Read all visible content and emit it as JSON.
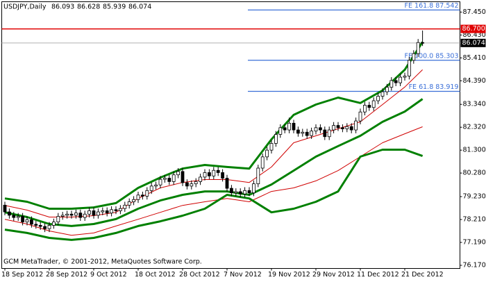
{
  "chart_data": {
    "type": "candlestick",
    "symbol": "USDJPY,Daily",
    "footer": "GCM MetaTrader, © 2001-2012, MetaQuotes Software Corp.",
    "categories": [
      "18 Sep 2012",
      null,
      null,
      null,
      null,
      null,
      null,
      null,
      null,
      null,
      "28 Sep 2012",
      null,
      null,
      null,
      null,
      null,
      null,
      null,
      null,
      null,
      "9 Oct 2012",
      null,
      null,
      null,
      null,
      null,
      null,
      null,
      null,
      null,
      "18 Oct 2012",
      null,
      null,
      null,
      null,
      null,
      null,
      null,
      null,
      null,
      "28 Oct 2012",
      null,
      null,
      null,
      null,
      null,
      null,
      null,
      null,
      null,
      "7 Nov 2012",
      null,
      null,
      null,
      null,
      null,
      null,
      null,
      null,
      null,
      "19 Nov 2012",
      null,
      null,
      null,
      null,
      null,
      null,
      null,
      null,
      null,
      "29 Nov 2012",
      null,
      null,
      null,
      null,
      null,
      null,
      null,
      null,
      null,
      "11 Dec 2012",
      null,
      null,
      null,
      null,
      null,
      null,
      null,
      null,
      null,
      "21 Dec 2012",
      null,
      null,
      null,
      null
    ],
    "open": [
      78.85,
      78.55,
      78.4,
      78.3,
      78.35,
      78.1,
      78.2,
      78.0,
      77.95,
      77.9,
      77.8,
      77.95,
      78.1,
      78.35,
      78.4,
      78.45,
      78.4,
      78.5,
      78.3,
      78.45,
      78.6,
      78.4,
      78.55,
      78.6,
      78.5,
      78.65,
      78.6,
      78.7,
      78.85,
      79.0,
      79.1,
      79.3,
      79.25,
      79.5,
      79.7,
      79.75,
      80.0,
      80.05,
      79.9,
      80.2,
      80.35,
      79.85,
      79.7,
      79.8,
      79.9,
      80.1,
      80.3,
      80.15,
      80.4,
      80.3,
      80.05,
      79.6,
      79.4,
      79.45,
      79.35,
      79.5,
      79.4,
      79.8,
      80.5,
      81.0,
      81.3,
      81.6,
      82.0,
      82.3,
      82.2,
      82.5,
      82.2,
      82.05,
      82.1,
      81.95,
      82.15,
      82.3,
      82.2,
      81.9,
      82.2,
      82.4,
      82.3,
      82.25,
      82.35,
      82.2,
      82.6,
      83.0,
      83.3,
      83.2,
      83.5,
      83.7,
      83.9,
      84.1,
      84.4,
      84.3,
      84.55,
      84.6,
      85.3,
      85.6,
      86.093
    ],
    "high": [
      79.0,
      78.7,
      78.55,
      78.5,
      78.5,
      78.35,
      78.35,
      78.15,
      78.1,
      78.05,
      78.1,
      78.25,
      78.5,
      78.55,
      78.6,
      78.6,
      78.65,
      78.65,
      78.6,
      78.75,
      78.75,
      78.7,
      78.75,
      78.75,
      78.8,
      78.8,
      78.85,
      79.0,
      79.15,
      79.25,
      79.45,
      79.45,
      79.65,
      79.85,
      79.9,
      80.15,
      80.2,
      80.2,
      80.35,
      80.5,
      80.5,
      80.0,
      79.95,
      80.05,
      80.25,
      80.45,
      80.45,
      80.55,
      80.55,
      80.45,
      80.2,
      79.75,
      79.6,
      79.6,
      79.65,
      79.65,
      79.95,
      80.65,
      81.15,
      81.45,
      81.75,
      82.15,
      82.45,
      82.45,
      82.75,
      82.65,
      82.35,
      82.25,
      82.25,
      82.3,
      82.45,
      82.45,
      82.35,
      82.35,
      82.55,
      82.55,
      82.45,
      82.5,
      82.5,
      82.75,
      83.15,
      83.45,
      83.45,
      83.65,
      83.85,
      84.05,
      84.25,
      84.55,
      84.55,
      84.7,
      84.75,
      85.45,
      85.75,
      86.25,
      86.628
    ],
    "low": [
      78.4,
      78.25,
      78.15,
      78.15,
      77.95,
      77.95,
      77.85,
      77.8,
      77.75,
      77.65,
      77.65,
      77.8,
      77.95,
      78.2,
      78.25,
      78.25,
      78.25,
      78.15,
      78.15,
      78.3,
      78.25,
      78.25,
      78.4,
      78.35,
      78.35,
      78.45,
      78.45,
      78.55,
      78.7,
      78.85,
      78.95,
      79.1,
      79.1,
      79.35,
      79.55,
      79.6,
      79.85,
      79.75,
      79.75,
      80.05,
      79.7,
      79.55,
      79.55,
      79.65,
      79.75,
      79.95,
      80.0,
      80.0,
      80.15,
      79.9,
      79.45,
      79.25,
      79.25,
      79.2,
      79.2,
      79.25,
      79.25,
      79.65,
      80.35,
      80.85,
      81.15,
      81.45,
      81.85,
      82.05,
      82.05,
      82.05,
      81.9,
      81.9,
      81.8,
      81.8,
      82.0,
      82.05,
      81.75,
      81.75,
      82.05,
      82.15,
      82.1,
      82.1,
      82.05,
      82.05,
      82.45,
      82.85,
      83.05,
      83.05,
      83.35,
      83.55,
      83.75,
      83.95,
      84.15,
      84.15,
      84.4,
      84.45,
      85.15,
      85.45,
      85.939
    ],
    "close": [
      78.55,
      78.4,
      78.3,
      78.35,
      78.1,
      78.2,
      78.0,
      77.95,
      77.9,
      77.8,
      77.95,
      78.1,
      78.35,
      78.4,
      78.45,
      78.4,
      78.5,
      78.3,
      78.45,
      78.6,
      78.4,
      78.55,
      78.6,
      78.5,
      78.65,
      78.6,
      78.7,
      78.85,
      79.0,
      79.1,
      79.3,
      79.25,
      79.5,
      79.7,
      79.75,
      80.0,
      80.05,
      79.9,
      80.2,
      80.35,
      79.85,
      79.7,
      79.8,
      79.9,
      80.1,
      80.3,
      80.15,
      80.4,
      80.3,
      80.05,
      79.6,
      79.4,
      79.45,
      79.35,
      79.5,
      79.4,
      79.8,
      80.5,
      81.0,
      81.3,
      81.6,
      82.0,
      82.3,
      82.2,
      82.5,
      82.2,
      82.05,
      82.1,
      81.95,
      82.15,
      82.3,
      82.2,
      81.9,
      82.2,
      82.4,
      82.3,
      82.25,
      82.35,
      82.2,
      82.6,
      83.0,
      83.3,
      83.2,
      83.5,
      83.7,
      83.9,
      84.1,
      84.4,
      84.3,
      84.55,
      84.6,
      85.3,
      85.6,
      86.093,
      86.074
    ],
    "bull_color": "#ffffff",
    "bear_color": "#000000",
    "ylim": [
      76.03,
      87.91
    ],
    "yticks": [
      {
        "value": 87.45,
        "label": "87.450"
      },
      {
        "value": 86.43,
        "label": "86.430"
      },
      {
        "value": 85.41,
        "label": "85.410"
      },
      {
        "value": 84.39,
        "label": "84.390"
      },
      {
        "value": 83.34,
        "label": "83.340"
      },
      {
        "value": 82.32,
        "label": "82.320"
      },
      {
        "value": 81.3,
        "label": "81.300"
      },
      {
        "value": 80.28,
        "label": "80.280"
      },
      {
        "value": 79.23,
        "label": "79.230"
      },
      {
        "value": 78.21,
        "label": "78.210"
      },
      {
        "value": 77.19,
        "label": "77.190"
      },
      {
        "value": 76.17,
        "label": "76.170"
      }
    ],
    "lines": [
      {
        "color": "#008000",
        "width": 3,
        "x": [
          0,
          5,
          10,
          15,
          20,
          25,
          30,
          35,
          40,
          45,
          50,
          55,
          60,
          65,
          70,
          75,
          80,
          85,
          90,
          94
        ],
        "values": [
          79.15,
          79.0,
          78.69,
          78.69,
          78.75,
          78.94,
          79.62,
          80.08,
          80.48,
          80.64,
          80.55,
          80.48,
          81.78,
          82.87,
          83.33,
          83.64,
          83.4,
          83.96,
          84.88,
          86.12
        ]
      },
      {
        "color": "#d00000",
        "width": 1,
        "x": [
          0,
          5,
          10,
          15,
          20,
          25,
          30,
          35,
          40,
          45,
          50,
          55,
          60,
          65,
          70,
          75,
          80,
          85,
          90,
          94
        ],
        "values": [
          78.84,
          78.63,
          78.32,
          78.32,
          78.38,
          78.53,
          79.15,
          79.62,
          79.86,
          79.99,
          79.99,
          79.86,
          80.55,
          81.63,
          81.94,
          82.25,
          82.56,
          83.33,
          84.11,
          84.88
        ]
      },
      {
        "color": "#008000",
        "width": 3,
        "x": [
          0,
          5,
          10,
          15,
          20,
          25,
          30,
          35,
          40,
          45,
          50,
          55,
          60,
          65,
          70,
          75,
          80,
          85,
          90,
          94
        ],
        "values": [
          78.53,
          78.32,
          78.01,
          77.92,
          78.01,
          78.23,
          78.69,
          79.06,
          79.31,
          79.46,
          79.46,
          79.31,
          79.77,
          80.39,
          81.01,
          81.48,
          81.94,
          82.56,
          83.02,
          83.58
        ]
      },
      {
        "color": "#d00000",
        "width": 1,
        "x": [
          0,
          5,
          10,
          15,
          20,
          25,
          30,
          35,
          40,
          45,
          50,
          55,
          60,
          65,
          70,
          75,
          80,
          85,
          90,
          94
        ],
        "values": [
          78.22,
          78.01,
          77.7,
          77.51,
          77.61,
          77.92,
          78.22,
          78.53,
          78.84,
          79.0,
          79.15,
          79.0,
          79.46,
          79.62,
          79.93,
          80.39,
          81.01,
          81.63,
          82.03,
          82.34
        ]
      },
      {
        "color": "#008000",
        "width": 3,
        "x": [
          0,
          5,
          10,
          15,
          20,
          25,
          30,
          35,
          40,
          45,
          50,
          55,
          60,
          65,
          70,
          75,
          80,
          85,
          90,
          94
        ],
        "values": [
          77.76,
          77.61,
          77.39,
          77.3,
          77.39,
          77.61,
          77.92,
          78.13,
          78.38,
          78.69,
          79.31,
          79.15,
          78.53,
          78.69,
          79.0,
          79.46,
          81.01,
          81.32,
          81.32,
          81.04
        ]
      }
    ],
    "fib_color": "#3a6fd8",
    "fib_levels": [
      {
        "text": "FE 161.8 87.542",
        "value": 87.542
      },
      {
        "text": "FE 100.0 85.303",
        "value": 85.303
      },
      {
        "text": "FE 61.8 83.919",
        "value": 83.919
      }
    ],
    "price_level": {
      "value": 86.7,
      "label": "86.700",
      "color": "#e00000"
    }
  }
}
